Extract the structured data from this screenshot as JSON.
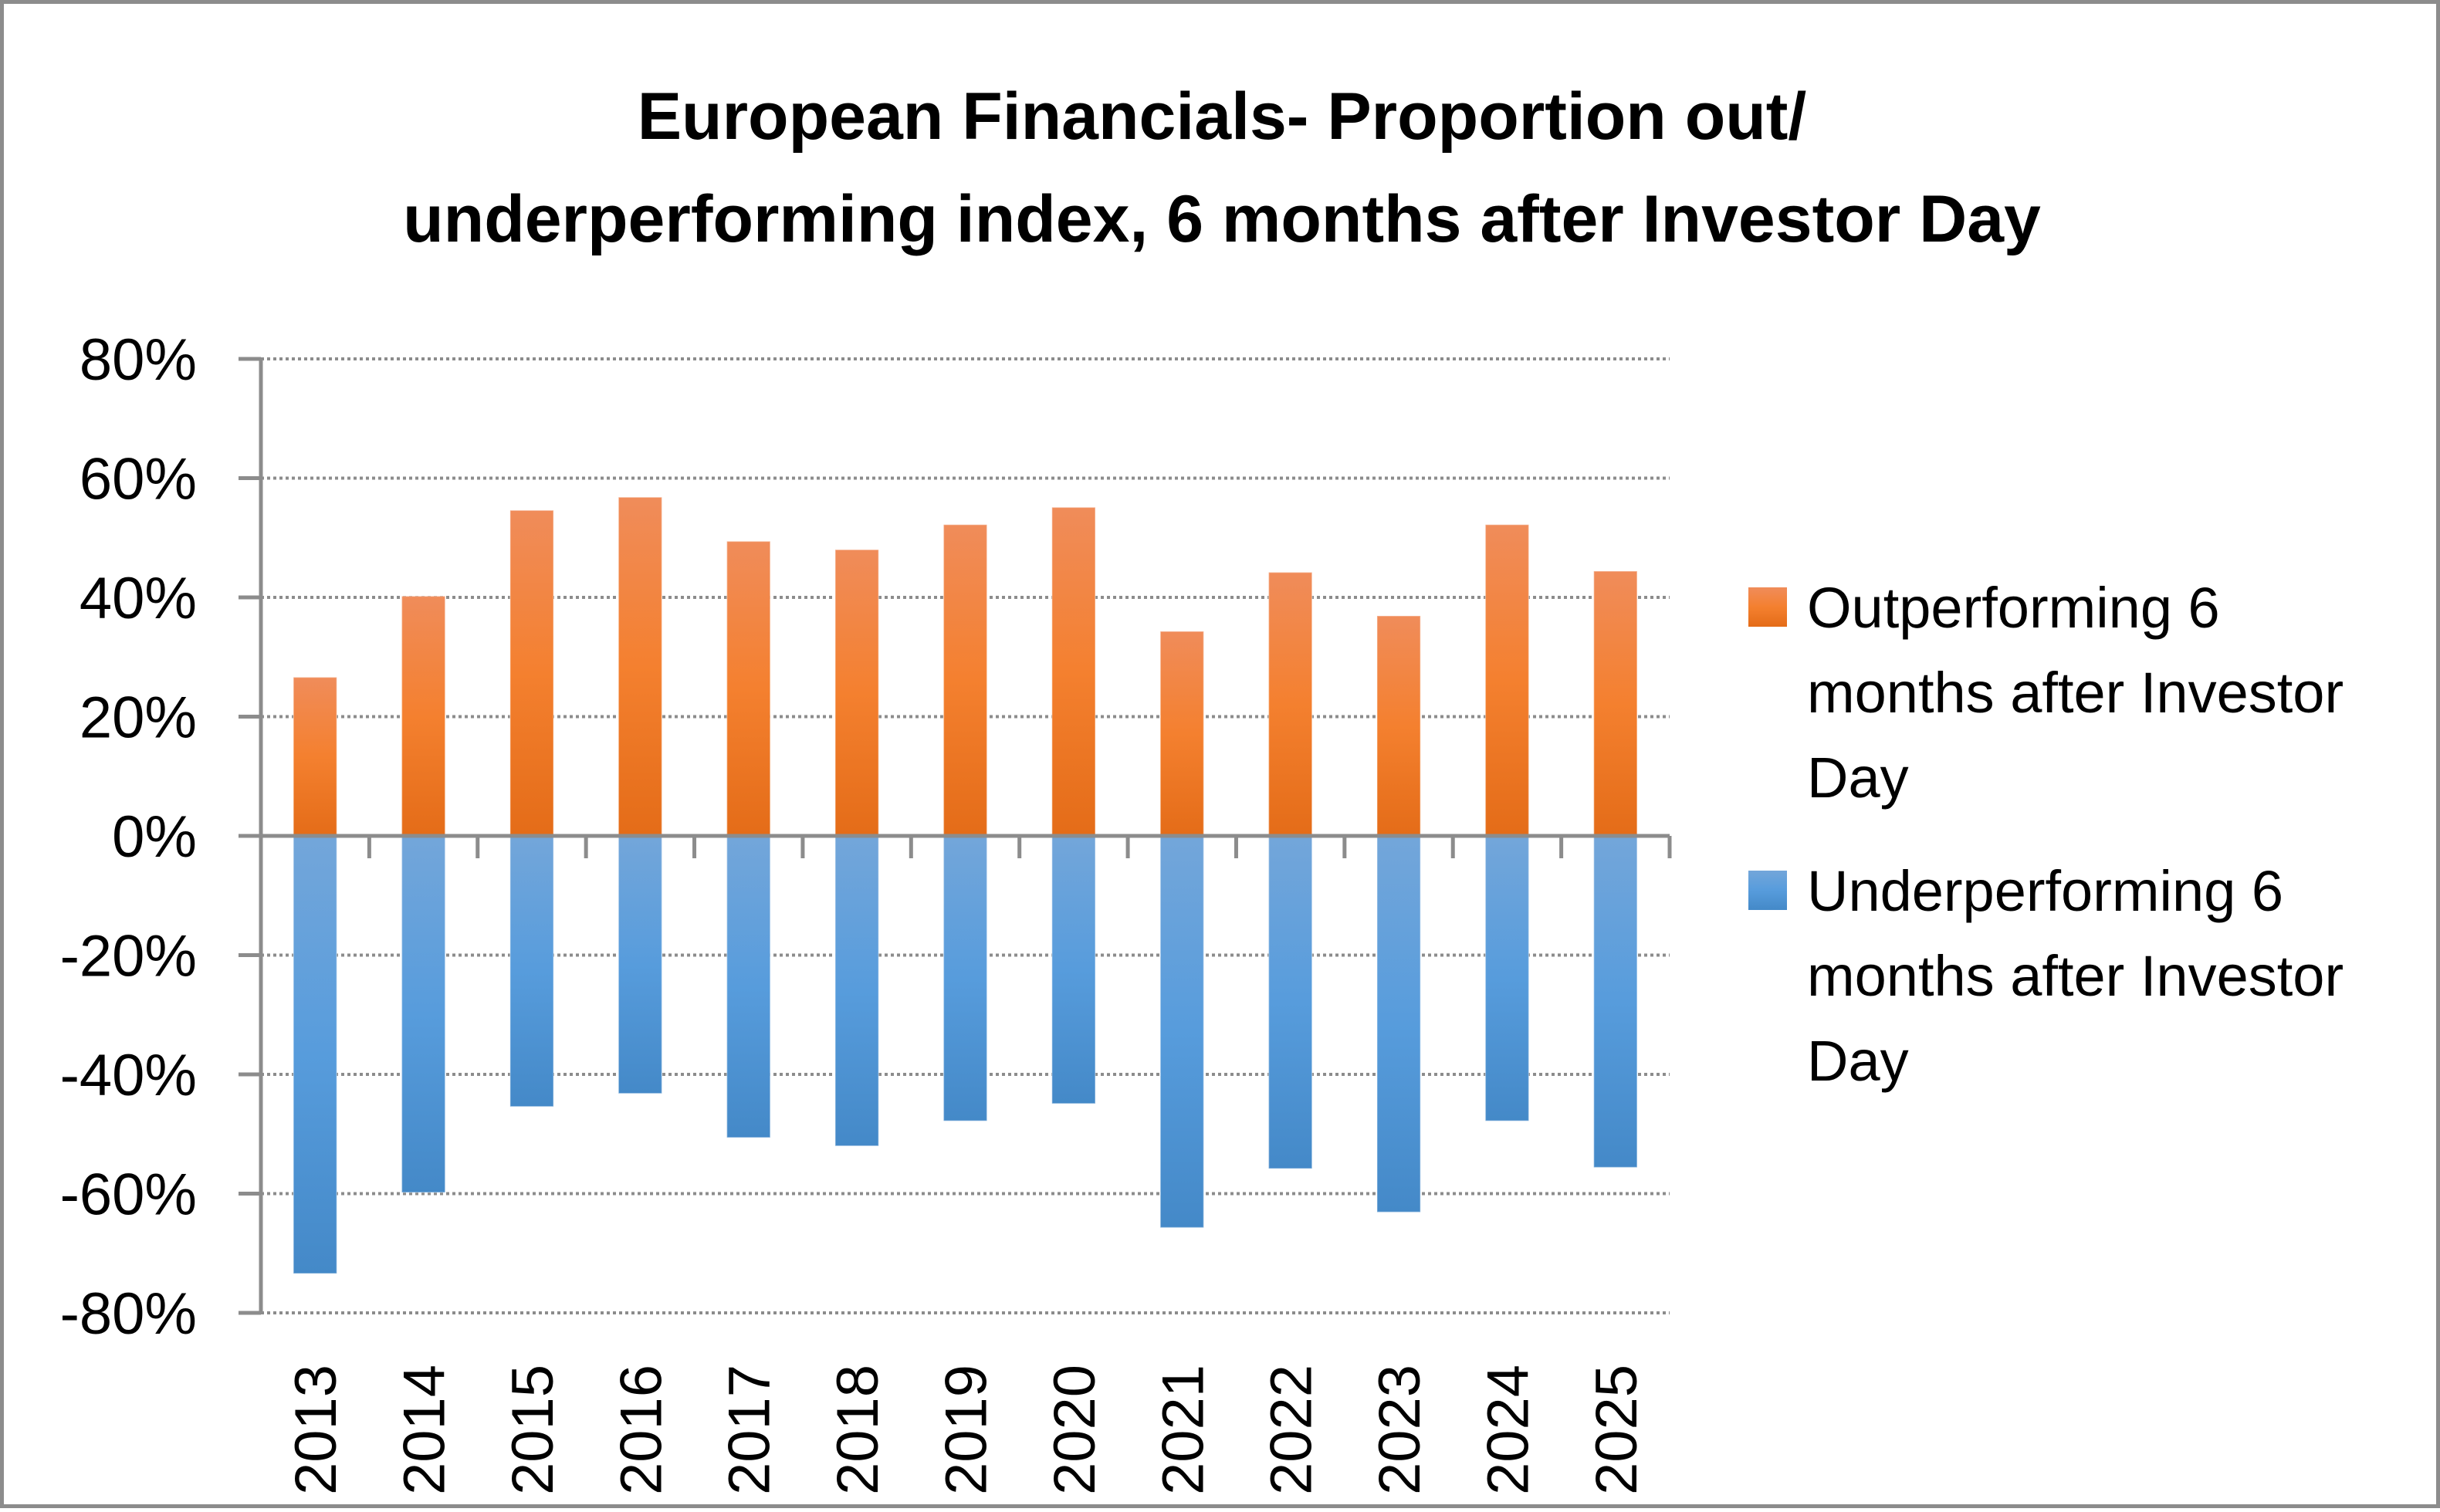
{
  "chart_data": {
    "type": "bar",
    "title_lines": [
      "European Financials- Proportion out/",
      "underperforming index, 6 months after Investor Day"
    ],
    "title": "European Financials- Proportion out/ underperforming index, 6 months after Investor Day",
    "xlabel": "",
    "ylabel": "",
    "categories": [
      "2013",
      "2014",
      "2015",
      "2016",
      "2017",
      "2018",
      "2019",
      "2020",
      "2021",
      "2022",
      "2023",
      "2024",
      "2025"
    ],
    "series": [
      {
        "name": "Outperforming 6 months after Investor Day",
        "legend_lines": [
          "Outperforming 6",
          "months after Investor",
          "Day"
        ],
        "color_top": "#F08C5A",
        "color_mid": "#F4802F",
        "color_bottom": "#E46C18",
        "values": [
          0.266,
          0.402,
          0.546,
          0.568,
          0.494,
          0.48,
          0.522,
          0.551,
          0.343,
          0.442,
          0.369,
          0.522,
          0.444
        ]
      },
      {
        "name": "Underperforming 6 months after Investor Day",
        "legend_lines": [
          "Underperforming 6",
          "months after Investor",
          "Day"
        ],
        "color_top": "#73A6DA",
        "color_mid": "#579CDC",
        "color_bottom": "#4489C8",
        "values": [
          -0.734,
          -0.598,
          -0.454,
          -0.432,
          -0.506,
          -0.52,
          -0.478,
          -0.449,
          -0.657,
          -0.558,
          -0.631,
          -0.478,
          -0.556
        ]
      }
    ],
    "ylim": [
      -0.8,
      0.8
    ],
    "yticks": [
      0.8,
      0.6,
      0.4,
      0.2,
      0.0,
      -0.2,
      -0.4,
      -0.6,
      -0.8
    ],
    "ytick_labels": [
      "80%",
      "60%",
      "40%",
      "20%",
      "0%",
      "-20%",
      "-40%",
      "-60%",
      "-80%"
    ],
    "grid": "horizontal-dotted",
    "stacked": true,
    "legend_position": "right",
    "xtick_rotation": "vertical",
    "axis_color": "#8c8c8c"
  }
}
